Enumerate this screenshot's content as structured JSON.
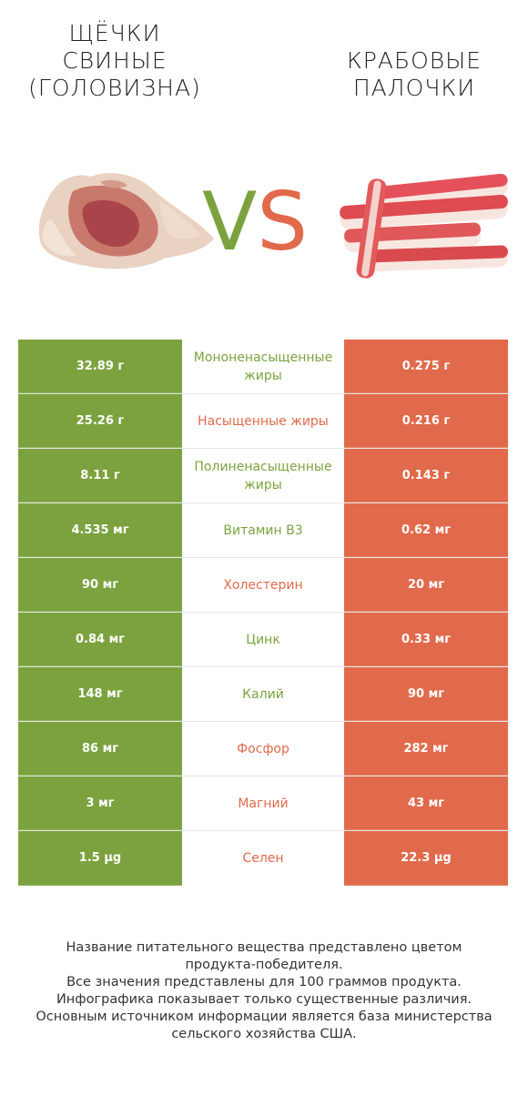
{
  "left_food": {
    "title": "Щёчки\nсвиные\n(головизна)",
    "image": "pork-cheek-image"
  },
  "right_food": {
    "title": "Крабовые\nпалочки",
    "image": "crab-sticks-image"
  },
  "vs": {
    "v": "V",
    "s": "S"
  },
  "colors": {
    "left": "#7ba23f",
    "right": "#e06a4b"
  },
  "rows": [
    {
      "left": "32.89 г",
      "name": "Мононенасыщенные жиры",
      "right": "0.275 г",
      "winner": "left"
    },
    {
      "left": "25.26 г",
      "name": "Насыщенные жиры",
      "right": "0.216 г",
      "winner": "right"
    },
    {
      "left": "8.11 г",
      "name": "Полиненасыщенные жиры",
      "right": "0.143 г",
      "winner": "left"
    },
    {
      "left": "4.535 мг",
      "name": "Витамин B3",
      "right": "0.62 мг",
      "winner": "left"
    },
    {
      "left": "90 мг",
      "name": "Холестерин",
      "right": "20 мг",
      "winner": "right"
    },
    {
      "left": "0.84 мг",
      "name": "Цинк",
      "right": "0.33 мг",
      "winner": "left"
    },
    {
      "left": "148 мг",
      "name": "Калий",
      "right": "90 мг",
      "winner": "left"
    },
    {
      "left": "86 мг",
      "name": "Фосфор",
      "right": "282 мг",
      "winner": "right"
    },
    {
      "left": "3 мг",
      "name": "Магний",
      "right": "43 мг",
      "winner": "right"
    },
    {
      "left": "1.5 µg",
      "name": "Селен",
      "right": "22.3 µg",
      "winner": "right"
    }
  ],
  "footnote": [
    "Название питательного вещества представлено цветом",
    "продукта-победителя.",
    "Все значения представлены для 100 граммов продукта.",
    "Инфографика показывает только существенные различия.",
    "Основным источником информации является база министерства",
    "сельского хозяйства США."
  ]
}
